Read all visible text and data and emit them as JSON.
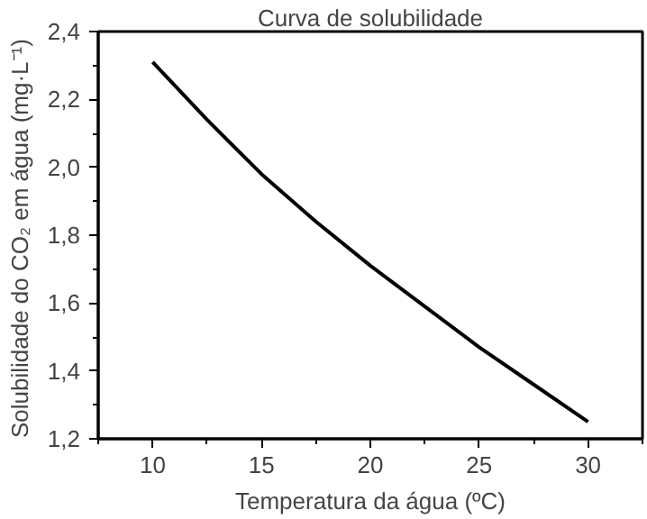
{
  "chart_data": {
    "type": "line",
    "title": "Curva de solubilidade",
    "xlabel": "Temperatura da água (ºC)",
    "ylabel": "Solubilidade  do CO₂ em água (mg·L⁻¹)",
    "x": [
      10,
      12.5,
      15,
      17.5,
      20,
      22.5,
      25,
      27.5,
      30
    ],
    "series": [
      {
        "color": "#000000",
        "values": [
          2.31,
          2.14,
          1.98,
          1.84,
          1.71,
          1.59,
          1.47,
          1.36,
          1.25
        ]
      }
    ],
    "xlim": [
      7.5,
      32.5
    ],
    "xticks": [
      10,
      15,
      20,
      25,
      30
    ],
    "ylim": [
      1.2,
      2.4
    ],
    "yticks": [
      {
        "value": 1.2,
        "label": "1,2"
      },
      {
        "value": 1.4,
        "label": "1,4"
      },
      {
        "value": 1.6,
        "label": "1,6"
      },
      {
        "value": 1.8,
        "label": "1,8"
      },
      {
        "value": 2.0,
        "label": "2,0"
      },
      {
        "value": 2.2,
        "label": "2,2"
      },
      {
        "value": 2.4,
        "label": "2,4"
      }
    ],
    "grid": false,
    "marker": "none",
    "line_style": "solid"
  }
}
